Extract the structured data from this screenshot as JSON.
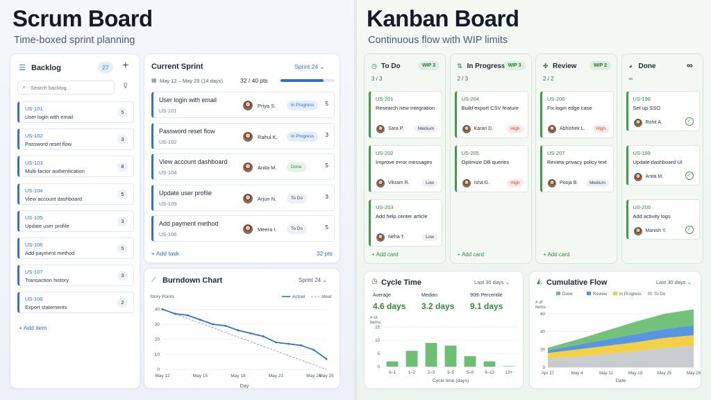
{
  "scrum": {
    "title": "Scrum Board",
    "subtitle": "Time-boxed sprint planning",
    "backlog": {
      "title": "Backlog",
      "count": "27",
      "search_placeholder": "Search backlog...",
      "items": [
        {
          "id": "US-101",
          "title": "User login with email",
          "points": "5"
        },
        {
          "id": "US-102",
          "title": "Password reset flow",
          "points": "3"
        },
        {
          "id": "US-103",
          "title": "Multi-factor authentication",
          "points": "8"
        },
        {
          "id": "US-104",
          "title": "View account dashboard",
          "points": "5"
        },
        {
          "id": "US-105",
          "title": "Update user profile",
          "points": "3"
        },
        {
          "id": "US-106",
          "title": "Add payment method",
          "points": "5"
        },
        {
          "id": "US-107",
          "title": "Transaction history",
          "points": "3"
        },
        {
          "id": "US-108",
          "title": "Export statements",
          "points": "2"
        }
      ],
      "add_label": "+ Add item"
    },
    "sprint": {
      "title": "Current Sprint",
      "selector": "Sprint 24",
      "dates": "May 12 – May 25 (14 days)",
      "points_progress": "32 / 40 pts",
      "progress": 0.8,
      "tasks": [
        {
          "title": "User login with email",
          "id": "US-101",
          "assignee": "Priya S.",
          "status": "In Progress",
          "status_kind": "prog",
          "points": "5"
        },
        {
          "title": "Password reset flow",
          "id": "US-102",
          "assignee": "Rahul K.",
          "status": "In Progress",
          "status_kind": "prog",
          "points": "3"
        },
        {
          "title": "View account dashboard",
          "id": "US-104",
          "assignee": "Anita M.",
          "status": "Done",
          "status_kind": "done",
          "points": "5"
        },
        {
          "title": "Update user profile",
          "id": "US-105",
          "assignee": "Arjun N.",
          "status": "To Do",
          "status_kind": "todo",
          "points": "3"
        },
        {
          "title": "Add payment method",
          "id": "US-106",
          "assignee": "Meera I.",
          "status": "To Do",
          "status_kind": "todo",
          "points": "5"
        }
      ],
      "add_label": "+ Add task",
      "total": "32 pts"
    },
    "burndown": {
      "title": "Burndown Chart",
      "selector": "Sprint 24",
      "ylabel": "Story Points",
      "xlabel": "Day",
      "legend_actual": "Actual",
      "legend_ideal": "Ideal"
    }
  },
  "kanban": {
    "title": "Kanban Board",
    "subtitle": "Continuous flow with WIP limits",
    "columns": [
      {
        "title": "To Do",
        "wip": "WIP 3",
        "count": "3 / 3",
        "cards": [
          {
            "id": "US-201",
            "title": "Research new integration",
            "assignee": "Sara P.",
            "priority": "Medium",
            "prio_kind": "med"
          },
          {
            "id": "US-202",
            "title": "Improve error messages",
            "assignee": "Vikram R.",
            "priority": "Low",
            "prio_kind": "low"
          },
          {
            "id": "US-203",
            "title": "Add help center article",
            "assignee": "Neha T.",
            "priority": "Low",
            "prio_kind": "low"
          }
        ]
      },
      {
        "title": "In Progress",
        "wip": "WIP 3",
        "count": "2 / 3",
        "cards": [
          {
            "id": "US-204",
            "title": "Build export CSV feature",
            "assignee": "Karan D.",
            "priority": "High",
            "prio_kind": "high"
          },
          {
            "id": "US-205",
            "title": "Optimize DB queries",
            "assignee": "Isha G.",
            "priority": "High",
            "prio_kind": "high"
          }
        ]
      },
      {
        "title": "Review",
        "wip": "WIP 2",
        "count": "2 / 2",
        "cards": [
          {
            "id": "US-206",
            "title": "Fix login edge case",
            "assignee": "Abhishek L.",
            "priority": "High",
            "prio_kind": "high"
          },
          {
            "id": "US-207",
            "title": "Review privacy policy text",
            "assignee": "Pooja B.",
            "priority": "Medium",
            "prio_kind": "med"
          }
        ]
      },
      {
        "title": "Done",
        "wip": "∞",
        "count": "∞",
        "cards": [
          {
            "id": "US-198",
            "title": "Set up SSO",
            "assignee": "Rohit A."
          },
          {
            "id": "US-199",
            "title": "Update dashboard UI",
            "assignee": "Anita M."
          },
          {
            "id": "US-200",
            "title": "Add activity logs",
            "assignee": "Manish Y."
          }
        ]
      }
    ],
    "add_card_label": "+ Add card",
    "cycle_time": {
      "title": "Cycle Time",
      "selector": "Last 30 days",
      "stats": [
        {
          "label": "Average",
          "value": "4.6 days"
        },
        {
          "label": "Median",
          "value": "3.2 days"
        },
        {
          "label": "90th Percentile",
          "value": "9.1 days"
        }
      ]
    },
    "cumulative_flow": {
      "title": "Cumulative Flow",
      "selector": "Last 30 days"
    }
  },
  "chart_data": [
    {
      "type": "line",
      "x": [
        "May 12",
        "May 13",
        "May 14",
        "May 15",
        "May 16",
        "May 17",
        "May 18",
        "May 19",
        "May 20",
        "May 21",
        "May 22",
        "May 23",
        "May 24",
        "May 25"
      ],
      "xticks": [
        "May 12",
        "May 15",
        "May 18",
        "May 21",
        "May 24",
        "May 25"
      ],
      "series": [
        {
          "name": "Actual",
          "values": [
            40,
            37,
            36,
            33,
            30,
            29,
            26,
            24,
            22,
            18,
            17,
            16,
            13,
            7
          ]
        },
        {
          "name": "Ideal",
          "values": [
            40,
            36.9,
            33.8,
            30.8,
            27.7,
            24.6,
            21.5,
            18.5,
            15.4,
            12.3,
            9.2,
            6.2,
            3.1,
            0
          ]
        }
      ],
      "ylabel": "Story Points",
      "xlabel": "Day",
      "yticks": [
        0,
        10,
        20,
        30,
        40
      ],
      "ylim": [
        0,
        42
      ],
      "grid": true,
      "legend": "top-right"
    },
    {
      "type": "bar",
      "categories": [
        "0–1",
        "1–2",
        "2–3",
        "3–5",
        "5–8",
        "8–13",
        "13+"
      ],
      "values": [
        2,
        6,
        9,
        8,
        4,
        2,
        0.2
      ],
      "ylabel": "# of items",
      "xlabel": "Cycle time (days)",
      "yticks": [
        0,
        5,
        10,
        15
      ],
      "ylim": [
        0,
        15
      ]
    },
    {
      "type": "area",
      "x": [
        "Apr 27",
        "May 4",
        "May 11",
        "May 18",
        "May 25",
        "May 26"
      ],
      "series": [
        {
          "name": "To Do",
          "values": [
            10,
            12,
            15,
            18,
            22,
            24
          ]
        },
        {
          "name": "In Progress",
          "values": [
            6,
            8,
            9,
            10,
            11,
            12
          ]
        },
        {
          "name": "Review",
          "values": [
            3,
            5,
            7,
            9,
            10,
            11
          ]
        },
        {
          "name": "Done",
          "values": [
            3,
            6,
            10,
            14,
            17,
            18
          ]
        }
      ],
      "ylabel": "# of items",
      "xlabel": "Date",
      "yticks": [
        0,
        20,
        40,
        60
      ],
      "ylim": [
        0,
        70
      ],
      "colors": {
        "Done": "#6cbf73",
        "Review": "#4f8fe0",
        "In Progress": "#f2cd3a",
        "To Do": "#c6c9cf"
      },
      "legend": "top"
    }
  ]
}
